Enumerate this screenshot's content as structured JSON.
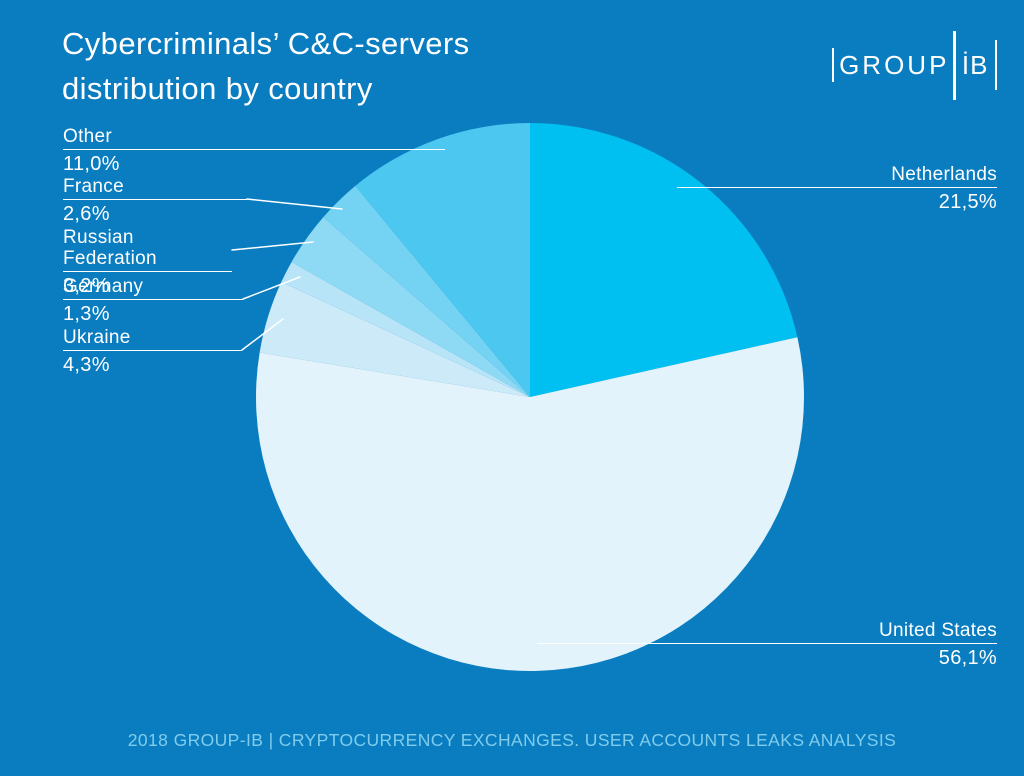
{
  "title": {
    "lines": [
      "Cybercriminals’ C&C-servers",
      "distribution by country"
    ]
  },
  "logo": {
    "group": "GROUP",
    "ib": "İB"
  },
  "footer": {
    "text": "2018 GROUP-IB | CRYPTOCURRENCY EXCHANGES. USER ACCOUNTS LEAKS ANALYSIS"
  },
  "colors": {
    "background": "#0a7dc1",
    "text": "#ffffff",
    "footer_text": "#7fccec",
    "leader_line": "#ffffff"
  },
  "chart_data": {
    "type": "pie",
    "title": "Cybercriminals’ C&C-servers distribution by country",
    "unit": "%",
    "start_angle_deg": 0,
    "direction": "clockwise",
    "legend_position": "callout-labels",
    "slices": [
      {
        "label": "Netherlands",
        "value_pct": 21.5,
        "display": "21,5%",
        "color": "#00c0f1"
      },
      {
        "label": "United States",
        "value_pct": 56.1,
        "display": "56,1%",
        "color": "#e2f3fb"
      },
      {
        "label": "Ukraine",
        "value_pct": 4.3,
        "display": "4,3%",
        "color": "#cdeaf9"
      },
      {
        "label": "Germany",
        "value_pct": 1.3,
        "display": "1,3%",
        "color": "#b7e4f7"
      },
      {
        "label": "Russian Federation",
        "value_pct": 3.2,
        "display": "3,2%",
        "color": "#8edaf5"
      },
      {
        "label": "France",
        "value_pct": 2.6,
        "display": "2,6%",
        "color": "#74d2f3"
      },
      {
        "label": "Other",
        "value_pct": 11.0,
        "display": "11,0%",
        "color": "#4cc8f0"
      }
    ]
  }
}
